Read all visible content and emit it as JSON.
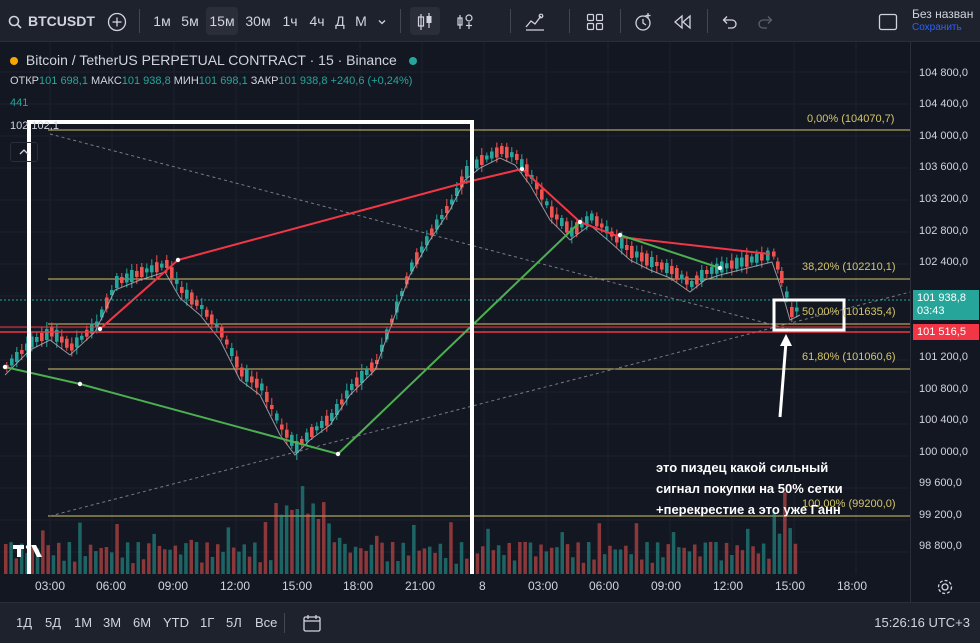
{
  "toolbar": {
    "symbol": "BTCUSDT",
    "timeframes": [
      "1м",
      "5м",
      "15м",
      "30м",
      "1ч",
      "4ч",
      "Д",
      "М"
    ],
    "active_timeframe": "15м",
    "save_title": "Без назван",
    "save_sub": "Сохранить"
  },
  "legend": {
    "title": "Bitcoin / TetherUS PERPETUAL CONTRACT · 15 · Binance",
    "open_label": "ОТКР",
    "open": "101 698,1",
    "high_label": "МАКС",
    "high": "101 938,8",
    "low_label": "МИН",
    "low": "101 698,1",
    "close_label": "ЗАКР",
    "close": "101 938,8",
    "change": "+240,6 (+0,24%)",
    "volume": "441",
    "top_price": "102 102,1"
  },
  "price_axis": {
    "ticks": [
      "104 800,0",
      "104 400,0",
      "104 000,0",
      "103 600,0",
      "103 200,0",
      "102 800,0",
      "102 400,0",
      "101 200,0",
      "100 800,0",
      "100 400,0",
      "100 000,0",
      "99 600,0",
      "99 200,0",
      "98 800,0"
    ],
    "current_price": "101 938,8",
    "countdown": "03:43",
    "red_line_price": "101 516,5"
  },
  "fib_levels": [
    {
      "label": "0,00% (104070,7)"
    },
    {
      "label": "38,20% (102210,1)"
    },
    {
      "label": "50,00% (101635,4)"
    },
    {
      "label": "61,80% (101060,6)"
    },
    {
      "label": "100,00% (99200,0)"
    }
  ],
  "time_axis": [
    "03:00",
    "06:00",
    "09:00",
    "12:00",
    "15:00",
    "18:00",
    "21:00",
    "8",
    "03:00",
    "06:00",
    "09:00",
    "12:00",
    "15:00",
    "18:00"
  ],
  "bottom": {
    "ranges": [
      "1Д",
      "5Д",
      "1М",
      "3М",
      "6М",
      "YTD",
      "1Г",
      "5Л",
      "Все"
    ],
    "clock": "15:26:16 UTC+3"
  },
  "annotation": "это пиздец какой сильный сигнал покупки на 50% сетки +перекрестие а это уже Ганн",
  "colors": {
    "up": "#26a69a",
    "down": "#ef5350",
    "fib": "#d4c56a",
    "red_line": "#f23645",
    "green_line": "#4caf50"
  }
}
